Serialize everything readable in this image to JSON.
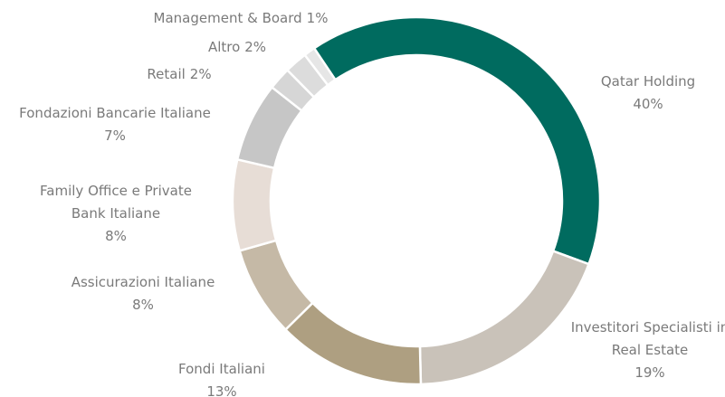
{
  "chart_data": {
    "type": "donut",
    "categories": [
      "Qatar Holding",
      "Investitori Specialisti in Real Estate",
      "Fondi Italiani",
      "Assicurazioni Italiane",
      "Family Office e Private Bank Italiane",
      "Fondazioni Bancarie Italiane",
      "Retail",
      "Altro",
      "Management & Board"
    ],
    "values": [
      40,
      19,
      13,
      8,
      8,
      7,
      2,
      2,
      1
    ],
    "value_labels": [
      "40%",
      "19%",
      "13%",
      "8%",
      "8%",
      "7%",
      "2%",
      "2%",
      "1%"
    ],
    "colors": [
      "#006b5f",
      "#c9c2b9",
      "#ae9f81",
      "#c5b9a6",
      "#e7ddd6",
      "#c6c6c6",
      "#d6d6d6",
      "#dcdcdc",
      "#e6e6e6"
    ]
  }
}
